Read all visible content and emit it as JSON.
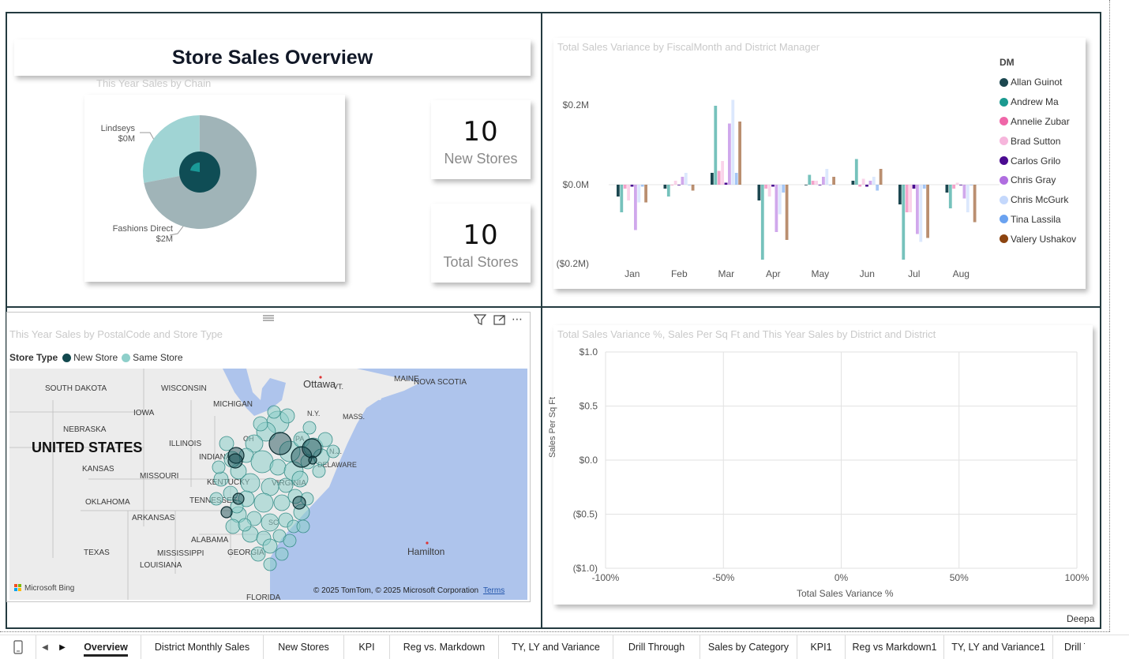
{
  "report": {
    "title": "Store Sales Overview",
    "footer_user": "Deepa"
  },
  "pie_visual": {
    "title": "This Year Sales by Chain",
    "labels": [
      {
        "name": "Lindseys",
        "value": "$0M"
      },
      {
        "name": "Fashions Direct",
        "value": "$2M"
      }
    ],
    "slices": [
      {
        "name": "Lindseys",
        "share": 0.28,
        "color": "#a0d4d4"
      },
      {
        "name": "Fashions Direct",
        "share": 0.72,
        "color": "#a0b4b8"
      }
    ],
    "inner_colors": [
      "#0f4d55",
      "#1a9a98"
    ]
  },
  "kpis": [
    {
      "value": "10",
      "label": "New Stores"
    },
    {
      "value": "10",
      "label": "Total Stores"
    }
  ],
  "bar_visual": {
    "title": "Total Sales Variance by FiscalMonth and District Manager",
    "legend_title": "DM",
    "y_ticks": [
      "$0.2M",
      "$0.0M",
      "($0.2M)"
    ]
  },
  "chart_data": {
    "type": "bar",
    "title": "Total Sales Variance by FiscalMonth and District Manager",
    "xlabel": "",
    "ylabel": "",
    "ylim": [
      -0.2,
      0.2
    ],
    "legend_position": "right",
    "categories": [
      "Jan",
      "Feb",
      "Mar",
      "Apr",
      "May",
      "Jun",
      "Jul",
      "Aug"
    ],
    "series": [
      {
        "name": "Allan Guinot",
        "color": "#1c4750",
        "values": [
          -0.03,
          -0.01,
          0.03,
          -0.04,
          0.0,
          0.01,
          -0.05,
          -0.02
        ]
      },
      {
        "name": "Andrew Ma",
        "color": "#1b9a90",
        "values": [
          -0.07,
          -0.03,
          0.2,
          -0.19,
          0.025,
          0.065,
          -0.19,
          -0.06
        ]
      },
      {
        "name": "Annelie Zubar",
        "color": "#ef66a8",
        "values": [
          -0.01,
          0.0,
          0.035,
          -0.01,
          0.01,
          -0.005,
          -0.07,
          -0.01
        ]
      },
      {
        "name": "Brad Sutton",
        "color": "#f6b6dc",
        "values": [
          -0.04,
          0.01,
          0.06,
          -0.03,
          0.01,
          0.015,
          -0.07,
          0.005
        ]
      },
      {
        "name": "Carlos Grilo",
        "color": "#4a0a90",
        "values": [
          -0.005,
          0.0,
          0.005,
          -0.005,
          0.0,
          -0.005,
          -0.01,
          0.0
        ]
      },
      {
        "name": "Chris Gray",
        "color": "#b06ee0",
        "values": [
          -0.115,
          0.02,
          0.155,
          -0.12,
          0.02,
          0.01,
          -0.125,
          -0.035
        ]
      },
      {
        "name": "Chris McGurk",
        "color": "#c4d8fc",
        "values": [
          -0.045,
          0.03,
          0.215,
          -0.075,
          0.04,
          0.02,
          -0.145,
          -0.07
        ]
      },
      {
        "name": "Tina Lassila",
        "color": "#6aa2f0",
        "values": [
          -0.005,
          0.0,
          0.03,
          -0.02,
          0.0,
          -0.015,
          -0.01,
          0.0
        ]
      },
      {
        "name": "Valery Ushakov",
        "color": "#8c4410",
        "values": [
          -0.045,
          -0.015,
          0.16,
          -0.14,
          0.02,
          0.04,
          -0.135,
          -0.095
        ]
      }
    ]
  },
  "map_visual": {
    "title": "This Year Sales by PostalCode and Store Type",
    "legend_title": "Store Type",
    "legend_items": [
      {
        "name": "New Store",
        "color": "#12484e"
      },
      {
        "name": "Same Store",
        "color": "#8ecfca"
      }
    ],
    "attribution": "© 2025 TomTom, © 2025 Microsoft Corporation",
    "terms_link": "Terms",
    "provider": "Microsoft Bing",
    "place_labels": [
      {
        "text": "SOUTH DAKOTA"
      },
      {
        "text": "WISCONSIN"
      },
      {
        "text": "Ottawa"
      },
      {
        "text": "MAINE"
      },
      {
        "text": "NOVA SCOTIA"
      },
      {
        "text": "VT."
      },
      {
        "text": "MICHIGAN"
      },
      {
        "text": "N.Y."
      },
      {
        "text": "IOWA"
      },
      {
        "text": "MASS."
      },
      {
        "text": "NEBRASKA"
      },
      {
        "text": "ILLINOIS"
      },
      {
        "text": "UNITED STATES"
      },
      {
        "text": "INDIANA"
      },
      {
        "text": "KANSAS"
      },
      {
        "text": "MISSOURI"
      },
      {
        "text": "KENTUCKY"
      },
      {
        "text": "VIRGINIA"
      },
      {
        "text": "OKLAHOMA"
      },
      {
        "text": "TENNESSEE"
      },
      {
        "text": "ARKANSAS"
      },
      {
        "text": "ALABAMA"
      },
      {
        "text": "TEXAS"
      },
      {
        "text": "MISSISSIPPI"
      },
      {
        "text": "GEORGIA"
      },
      {
        "text": "LOUISIANA"
      },
      {
        "text": "FLORIDA"
      },
      {
        "text": "Hamilton"
      },
      {
        "text": "DELAWARE"
      },
      {
        "text": "OH"
      },
      {
        "text": "PA"
      },
      {
        "text": "N.J."
      },
      {
        "text": "SC"
      }
    ]
  },
  "scatter_visual": {
    "title": "Total Sales Variance %, Sales Per Sq Ft and This Year Sales by District and District",
    "y_label": "Sales Per Sq Ft",
    "x_label": "Total Sales Variance %",
    "y_ticks": [
      "$1.0",
      "$0.5",
      "$0.0",
      "($0.5)",
      "($1.0)"
    ],
    "x_ticks": [
      "-100%",
      "-50%",
      "0%",
      "50%",
      "100%"
    ]
  },
  "tabs": [
    "Overview",
    "District Monthly Sales",
    "New Stores",
    "KPI",
    "Reg vs. Markdown",
    "TY, LY and Variance",
    "Drill Through",
    "Sales by Category",
    "KPI1",
    "Reg vs Markdown1",
    "TY, LY and Variance1",
    "Drill Th"
  ],
  "active_tab": "Overview"
}
